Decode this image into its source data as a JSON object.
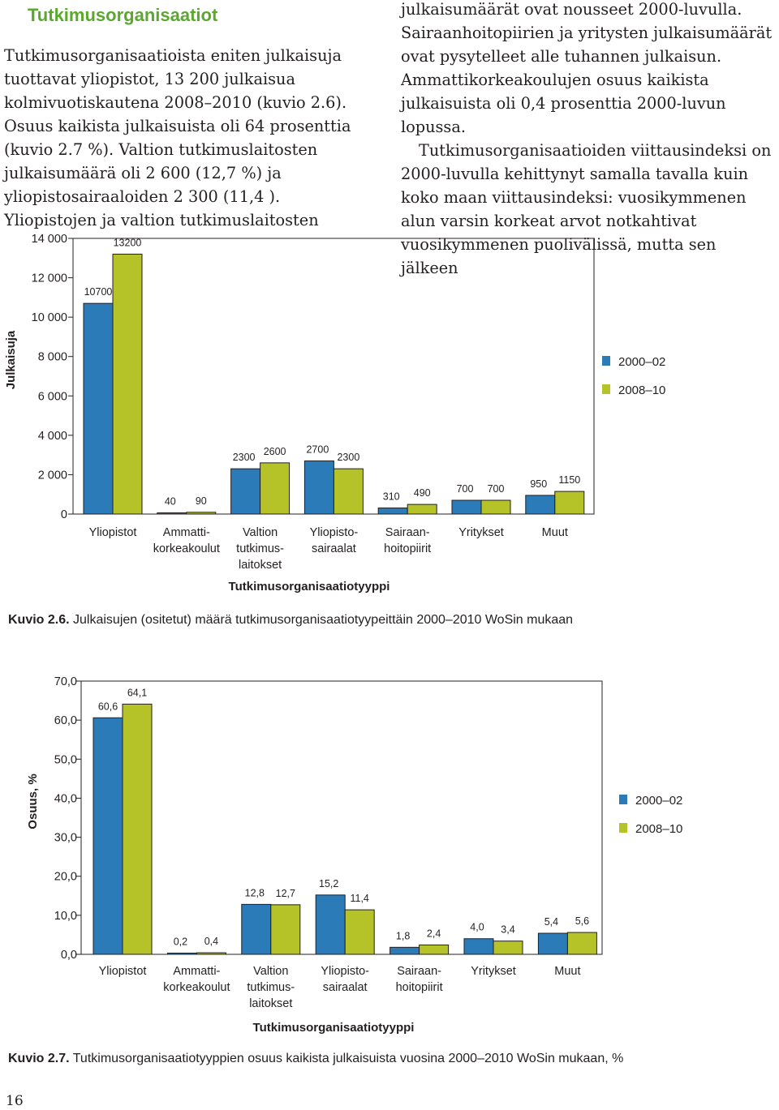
{
  "heading": "Tutkimusorganisaatiot",
  "text": {
    "left": "Tutkimusorganisaatioista eniten julkaisuja tuottavat yliopistot, 13 200 julkaisua kolmivuotiskautena 2008–2010 (kuvio 2.6). Osuus kaikista julkaisuista oli 64 prosenttia (kuvio 2.7 %). Valtion tutkimuslaitosten julkaisumäärä oli 2 600 (12,7 %) ja yliopistosairaaloiden 2 300 (11,4 ). Yliopistojen ja valtion tutkimuslaitosten",
    "right_p1": "julkaisumäärät ovat nousseet 2000-luvulla. Sairaanhoitopiirien ja yritysten julkaisumäärät ovat pysytelleet alle tuhannen julkaisun. Ammattikorkeakoulujen osuus kaikista julkaisuista oli 0,4 prosenttia 2000-luvun lopussa.",
    "right_p2": "Tutkimusorganisaatioiden viittausindeksi on 2000-luvulla kehittynyt samalla tavalla kuin koko maan viittausindeksi: vuosikymmenen alun varsin korkeat arvot notkahtivat vuosikymmenen puolivälissä, mutta sen jälkeen"
  },
  "colors": {
    "series1": "#2b7bb9",
    "series2": "#b5c228",
    "heading": "#5aa82e",
    "frame": "#231f20"
  },
  "chart_data": [
    {
      "type": "bar",
      "ylabel": "Julkaisuja",
      "xlabel": "Tutkimusorganisaatiotyyppi",
      "ylim": [
        0,
        14000
      ],
      "ytick_labels": [
        "0",
        "2 000",
        "4 000",
        "6 000",
        "8 000",
        "10 000",
        "12 000",
        "14 000"
      ],
      "categories": [
        [
          "Yliopistot"
        ],
        [
          "Ammatti-",
          "korkeakoulut"
        ],
        [
          "Valtion",
          "tutkimus-",
          "laitokset"
        ],
        [
          "Yliopisto-",
          "sairaalat"
        ],
        [
          "Sairaan-",
          "hoitopiirit"
        ],
        [
          "Yritykset"
        ],
        [
          "Muut"
        ]
      ],
      "series": [
        {
          "name": "2000–02",
          "values": [
            10700,
            40,
            2300,
            2700,
            310,
            700,
            950
          ],
          "labels": [
            "10700",
            "40",
            "2300",
            "2700",
            "310",
            "700",
            "950"
          ]
        },
        {
          "name": "2008–10",
          "values": [
            13200,
            90,
            2600,
            2300,
            490,
            700,
            1150
          ],
          "labels": [
            "13200",
            "90",
            "2600",
            "2300",
            "490",
            "700",
            "1150"
          ]
        }
      ],
      "legend": "right",
      "grid": false,
      "caption_label": "Kuvio 2.6.",
      "caption_text": " Julkaisujen (ositetut) määrä tutkimusorganisaatiotyypeittäin 2000–2010 WoSin mukaan"
    },
    {
      "type": "bar",
      "ylabel": "Osuus, %",
      "xlabel": "Tutkimusorganisaatiotyyppi",
      "ylim": [
        0,
        70
      ],
      "ytick_labels": [
        "0,0",
        "10,0",
        "20,0",
        "30,0",
        "40,0",
        "50,0",
        "60,0",
        "70,0"
      ],
      "categories": [
        [
          "Yliopistot"
        ],
        [
          "Ammatti-",
          "korkeakoulut"
        ],
        [
          "Valtion",
          "tutkimus-",
          "laitokset"
        ],
        [
          "Yliopisto-",
          "sairaalat"
        ],
        [
          "Sairaan-",
          "hoitopiirit"
        ],
        [
          "Yritykset"
        ],
        [
          "Muut"
        ]
      ],
      "series": [
        {
          "name": "2000–02",
          "values": [
            60.6,
            0.2,
            12.8,
            15.2,
            1.8,
            4.0,
            5.4
          ],
          "labels": [
            "60,6",
            "0,2",
            "12,8",
            "15,2",
            "1,8",
            "4,0",
            "5,4"
          ]
        },
        {
          "name": "2008–10",
          "values": [
            64.1,
            0.4,
            12.7,
            11.4,
            2.4,
            3.4,
            5.6
          ],
          "labels": [
            "64,1",
            "0,4",
            "12,7",
            "11,4",
            "2,4",
            "3,4",
            "5,6"
          ]
        }
      ],
      "legend": "right",
      "grid": false,
      "caption_label": "Kuvio 2.7.",
      "caption_text": " Tutkimusorganisaatiotyyppien osuus kaikista julkaisuista vuosina 2000–2010 WoSin mukaan, %"
    }
  ],
  "page_number": "16"
}
